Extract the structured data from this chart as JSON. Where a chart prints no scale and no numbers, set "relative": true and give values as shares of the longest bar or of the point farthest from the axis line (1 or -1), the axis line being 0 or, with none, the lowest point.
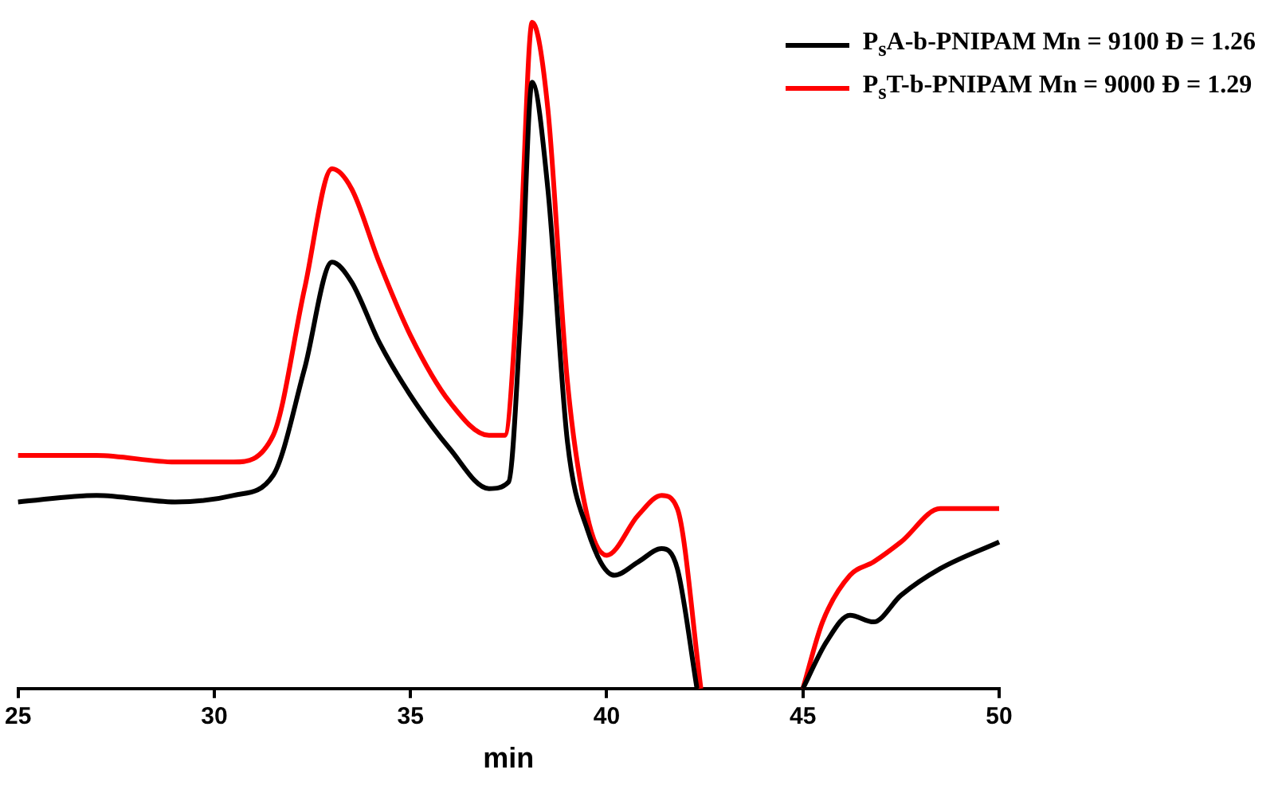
{
  "chart_data": {
    "type": "line",
    "xlabel": "min",
    "xlim": [
      25,
      50
    ],
    "xticks": [
      25,
      30,
      35,
      40,
      45,
      50
    ],
    "relative": true,
    "tick_labels": "x",
    "legend": "top right",
    "marker": "none",
    "series": [
      {
        "name": "P$_{s}$A-b-PNIPAM Mn = 9100 Đ = 1.26",
        "color": "#000000",
        "x": [
          25,
          27,
          29,
          30.5,
          31.5,
          32.3,
          33,
          33.5,
          34.2,
          35,
          36,
          37,
          37.5,
          37.8,
          38.1,
          38.5,
          39,
          39.5,
          40.2,
          40.8,
          41.4,
          41.8,
          42.3,
          43,
          45,
          45.6,
          46.2,
          46.8,
          47.5,
          48.5,
          50
        ],
        "values": [
          0.28,
          0.29,
          0.28,
          0.29,
          0.32,
          0.48,
          0.64,
          0.61,
          0.52,
          0.44,
          0.36,
          0.3,
          0.31,
          0.55,
          0.91,
          0.75,
          0.37,
          0.24,
          0.17,
          0.19,
          0.21,
          0.18,
          0,
          null,
          0,
          0.07,
          0.11,
          0.1,
          0.14,
          0.18,
          0.22
        ]
      },
      {
        "name": "P$_{s}$T-b-PNIPAM Mn = 9000 Đ = 1.29",
        "color": "#ff0000",
        "x": [
          25,
          27,
          29,
          30.5,
          31.5,
          32.3,
          33,
          33.5,
          34.2,
          35,
          36,
          37,
          37.4,
          37.8,
          38.1,
          38.5,
          39,
          39.5,
          40,
          40.8,
          41.4,
          41.8,
          42.4,
          43,
          45,
          45.5,
          46.2,
          46.8,
          47.5,
          48.5,
          50
        ],
        "values": [
          0.35,
          0.35,
          0.34,
          0.34,
          0.38,
          0.6,
          0.78,
          0.75,
          0.64,
          0.53,
          0.43,
          0.38,
          0.38,
          0.67,
          1,
          0.87,
          0.46,
          0.26,
          0.2,
          0.26,
          0.29,
          0.27,
          0,
          null,
          0,
          0.1,
          0.17,
          0.19,
          0.22,
          0.27,
          0.27
        ]
      }
    ]
  }
}
